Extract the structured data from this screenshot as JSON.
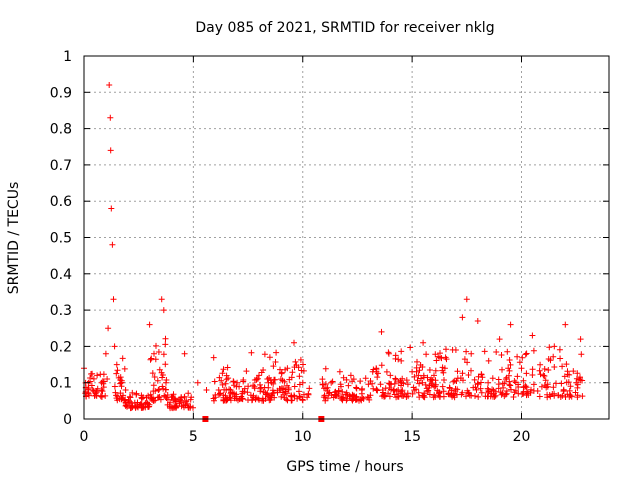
{
  "chart_data": {
    "type": "scatter",
    "title": "Day 085 of 2021, SRMTID for receiver nklg",
    "xlabel": "GPS time / hours",
    "ylabel": "SRMTID / TECUs",
    "xlim": [
      0,
      24
    ],
    "ylim": [
      0,
      1
    ],
    "xticks": [
      0,
      5,
      10,
      15,
      20
    ],
    "xtick_labels": [
      "0",
      "5",
      "10",
      "15",
      "20"
    ],
    "yticks": [
      0,
      0.1,
      0.2,
      0.3,
      0.4,
      0.5,
      0.6,
      0.7,
      0.8,
      0.9,
      1
    ],
    "ytick_labels": [
      "0",
      "0.1",
      "0.2",
      "0.3",
      "0.4",
      "0.5",
      "0.6",
      "0.7",
      "0.8",
      "0.9",
      "1"
    ],
    "grid": true,
    "marker": "plus",
    "series": [
      {
        "name": "SRMTID",
        "color": "#ff0000",
        "x": [
          0.0,
          0.2,
          0.4,
          0.6,
          0.8,
          1.0,
          1.1,
          1.15,
          1.2,
          1.22,
          1.25,
          1.3,
          1.35,
          1.4,
          1.5,
          1.7,
          1.9,
          2.1,
          2.4,
          2.7,
          3.0,
          3.2,
          3.4,
          3.55,
          3.65,
          3.75,
          4.0,
          4.3,
          4.6,
          4.9,
          5.2,
          5.6,
          6.0,
          6.5,
          7.0,
          7.5,
          8.0,
          8.5,
          9.0,
          9.3,
          9.6,
          10.0,
          10.2,
          10.9,
          11.3,
          11.7,
          12.2,
          12.7,
          13.2,
          13.6,
          14.0,
          14.5,
          15.0,
          15.5,
          16.0,
          16.5,
          17.0,
          17.3,
          17.5,
          17.7,
          18.0,
          18.5,
          19.0,
          19.5,
          20.0,
          20.5,
          21.0,
          21.5,
          22.0,
          22.5,
          22.7
        ],
        "y": [
          0.14,
          0.1,
          0.08,
          0.12,
          0.1,
          0.18,
          0.25,
          0.92,
          0.83,
          0.74,
          0.58,
          0.48,
          0.33,
          0.2,
          0.15,
          0.1,
          0.08,
          0.06,
          0.07,
          0.06,
          0.26,
          0.18,
          0.08,
          0.33,
          0.3,
          0.1,
          0.06,
          0.05,
          0.18,
          0.06,
          0.1,
          0.08,
          0.06,
          0.08,
          0.1,
          0.09,
          0.12,
          0.17,
          0.11,
          0.14,
          0.21,
          0.1,
          0.06,
          0.11,
          0.1,
          0.13,
          0.12,
          0.08,
          0.13,
          0.24,
          0.12,
          0.16,
          0.13,
          0.21,
          0.12,
          0.14,
          0.19,
          0.28,
          0.33,
          0.18,
          0.27,
          0.16,
          0.22,
          0.26,
          0.14,
          0.23,
          0.12,
          0.2,
          0.26,
          0.1,
          0.22
        ],
        "repeat_clusters": [
          {
            "x_range": [
              0.0,
              1.1
            ],
            "y_range": [
              0.06,
              0.14
            ],
            "count": 40
          },
          {
            "x_range": [
              1.4,
              1.9
            ],
            "y_range": [
              0.05,
              0.21
            ],
            "count": 25
          },
          {
            "x_range": [
              1.9,
              3.0
            ],
            "y_range": [
              0.03,
              0.08
            ],
            "count": 50
          },
          {
            "x_range": [
              3.0,
              3.8
            ],
            "y_range": [
              0.05,
              0.28
            ],
            "count": 40
          },
          {
            "x_range": [
              3.8,
              5.0
            ],
            "y_range": [
              0.03,
              0.08
            ],
            "count": 45
          },
          {
            "x_range": [
              5.8,
              10.3
            ],
            "y_range": [
              0.05,
              0.19
            ],
            "count": 180
          },
          {
            "x_range": [
              10.9,
              13.2
            ],
            "y_range": [
              0.05,
              0.14
            ],
            "count": 80
          },
          {
            "x_range": [
              13.2,
              22.8
            ],
            "y_range": [
              0.06,
              0.22
            ],
            "count": 340
          }
        ]
      },
      {
        "name": "gap markers",
        "color": "#ff0000",
        "marker": "square",
        "x": [
          5.55,
          10.85
        ],
        "y": [
          0.0,
          0.0
        ]
      }
    ]
  }
}
